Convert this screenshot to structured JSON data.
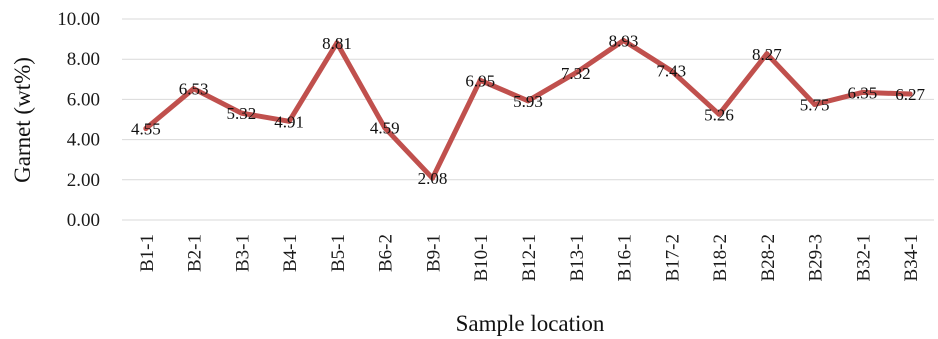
{
  "chart_data": {
    "type": "line",
    "title": "",
    "xlabel": "Sample location",
    "ylabel": "Garnet (wt%)",
    "ylim": [
      0,
      10
    ],
    "ytick_step": 2,
    "ytick_labels": [
      "0.00",
      "2.00",
      "4.00",
      "6.00",
      "8.00",
      "10.00"
    ],
    "grid": true,
    "legend": "none",
    "line_color": "#c0504d",
    "grid_color": "#d9d9d9",
    "categories": [
      "B1-1",
      "B2-1",
      "B3-1",
      "B4-1",
      "B5-1",
      "B6-2",
      "B9-1",
      "B10-1",
      "B12-1",
      "B13-1",
      "B16-1",
      "B17-2",
      "B18-2",
      "B28-2",
      "B29-3",
      "B32-1",
      "B34-1"
    ],
    "values": [
      4.55,
      6.53,
      5.32,
      4.91,
      8.81,
      4.59,
      2.08,
      6.95,
      5.93,
      7.32,
      8.93,
      7.43,
      5.26,
      8.27,
      5.75,
      6.35,
      6.27
    ],
    "data_labels": [
      "4.55",
      "6.53",
      "5.32",
      "4.91",
      "8.81",
      "4.59",
      "2.08",
      "6.95",
      "5.93",
      "7.32",
      "8.93",
      "7.43",
      "5.26",
      "8.27",
      "5.75",
      "6.35",
      "6.27"
    ]
  }
}
